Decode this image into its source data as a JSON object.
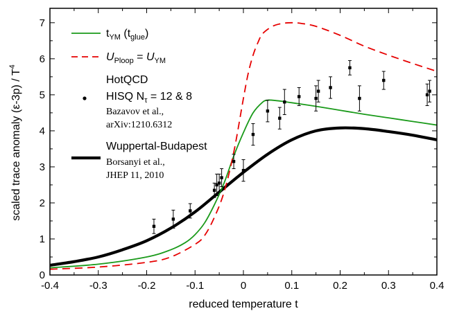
{
  "chart_data": {
    "type": "line",
    "xlabel": "reduced temperature  t",
    "ylabel": "scaled trace anomaly   (ε-3p) / T",
    "ylabel_sup": "4",
    "xlim": [
      -0.4,
      0.4
    ],
    "ylim": [
      0,
      7.4
    ],
    "x_ticks": [
      -0.4,
      -0.3,
      -0.2,
      -0.1,
      0,
      0.1,
      0.2,
      0.3,
      0.4
    ],
    "x_tick_labels": [
      "-0.4",
      "-0.3",
      "-0.2",
      "-0.1",
      "0",
      "0.1",
      "0.2",
      "0.3",
      "0.4"
    ],
    "y_ticks": [
      0,
      1,
      2,
      3,
      4,
      5,
      6,
      7
    ],
    "y_tick_labels": [
      "0",
      "1",
      "2",
      "3",
      "4",
      "5",
      "6",
      "7"
    ],
    "legend_placement": "top-left",
    "series": [
      {
        "name": "t_YM (t_glue)",
        "style": "line",
        "color": "#1a9a1a",
        "legend": {
          "main": "t",
          "sub1": "YM",
          "mid": " (t",
          "sub2": "glue",
          "end": ")"
        },
        "x": [
          -0.4,
          -0.3,
          -0.2,
          -0.15,
          -0.12,
          -0.1,
          -0.08,
          -0.06,
          -0.04,
          -0.02,
          0,
          0.02,
          0.04,
          0.05,
          0.06,
          0.08,
          0.1,
          0.15,
          0.2,
          0.25,
          0.3,
          0.35,
          0.4
        ],
        "y": [
          0.2,
          0.3,
          0.5,
          0.7,
          0.9,
          1.12,
          1.45,
          1.95,
          2.55,
          3.3,
          3.95,
          4.5,
          4.8,
          4.85,
          4.85,
          4.82,
          4.78,
          4.68,
          4.57,
          4.46,
          4.36,
          4.26,
          4.16
        ]
      },
      {
        "name": "U_Ploop = U_YM",
        "style": "dashed",
        "color": "#e60000",
        "legend": {
          "a": "U",
          "a_sub": "Ploop",
          "eq": " = ",
          "b": "U",
          "b_sub": "YM"
        },
        "x": [
          -0.4,
          -0.3,
          -0.2,
          -0.15,
          -0.1,
          -0.08,
          -0.06,
          -0.04,
          -0.02,
          0,
          0.01,
          0.02,
          0.03,
          0.04,
          0.06,
          0.08,
          0.1,
          0.12,
          0.15,
          0.2,
          0.25,
          0.3,
          0.35,
          0.4
        ],
        "y": [
          0.16,
          0.22,
          0.35,
          0.5,
          0.85,
          1.1,
          1.6,
          2.3,
          3.4,
          4.9,
          5.6,
          6.1,
          6.45,
          6.7,
          6.9,
          6.98,
          7.0,
          6.98,
          6.9,
          6.65,
          6.35,
          6.1,
          5.87,
          5.65
        ]
      },
      {
        "name": "HotQCD HISQ N_τ = 12 & 8",
        "style": "points",
        "color": "#000000",
        "legend": {
          "line1": "HotQCD",
          "line2_pre": "HISQ N",
          "line2_sub": "τ",
          "line2_post": " = 12 & 8",
          "ref1": "Bazavov et al.,",
          "ref2": "arXiv:1210.6312"
        },
        "x": [
          -0.185,
          -0.145,
          -0.11,
          -0.06,
          -0.055,
          -0.05,
          -0.045,
          -0.02,
          0,
          0.02,
          0.05,
          0.075,
          0.085,
          0.115,
          0.15,
          0.155,
          0.18,
          0.22,
          0.24,
          0.29,
          0.38,
          0.385
        ],
        "y": [
          1.35,
          1.55,
          1.78,
          2.35,
          2.5,
          2.55,
          2.7,
          3.15,
          2.9,
          3.9,
          4.55,
          4.35,
          4.8,
          4.95,
          4.9,
          5.1,
          5.2,
          5.75,
          4.9,
          5.4,
          5.0,
          5.1
        ],
        "err": [
          0.2,
          0.25,
          0.2,
          0.2,
          0.3,
          0.25,
          0.25,
          0.2,
          0.3,
          0.3,
          0.3,
          0.3,
          0.35,
          0.25,
          0.35,
          0.3,
          0.3,
          0.2,
          0.35,
          0.25,
          0.3,
          0.3
        ]
      },
      {
        "name": "Wuppertal-Budapest",
        "style": "thick-line",
        "color": "#000000",
        "legend": {
          "line1": "Wuppertal-Budapest",
          "ref1": "Borsanyi et al.,",
          "ref2": "JHEP 11, 2010"
        },
        "x": [
          -0.4,
          -0.35,
          -0.3,
          -0.25,
          -0.2,
          -0.15,
          -0.1,
          -0.05,
          0,
          0.05,
          0.1,
          0.15,
          0.2,
          0.25,
          0.3,
          0.35,
          0.4
        ],
        "y": [
          0.27,
          0.37,
          0.5,
          0.7,
          0.95,
          1.3,
          1.75,
          2.3,
          2.85,
          3.35,
          3.75,
          4.0,
          4.08,
          4.06,
          3.98,
          3.88,
          3.75
        ]
      }
    ]
  }
}
